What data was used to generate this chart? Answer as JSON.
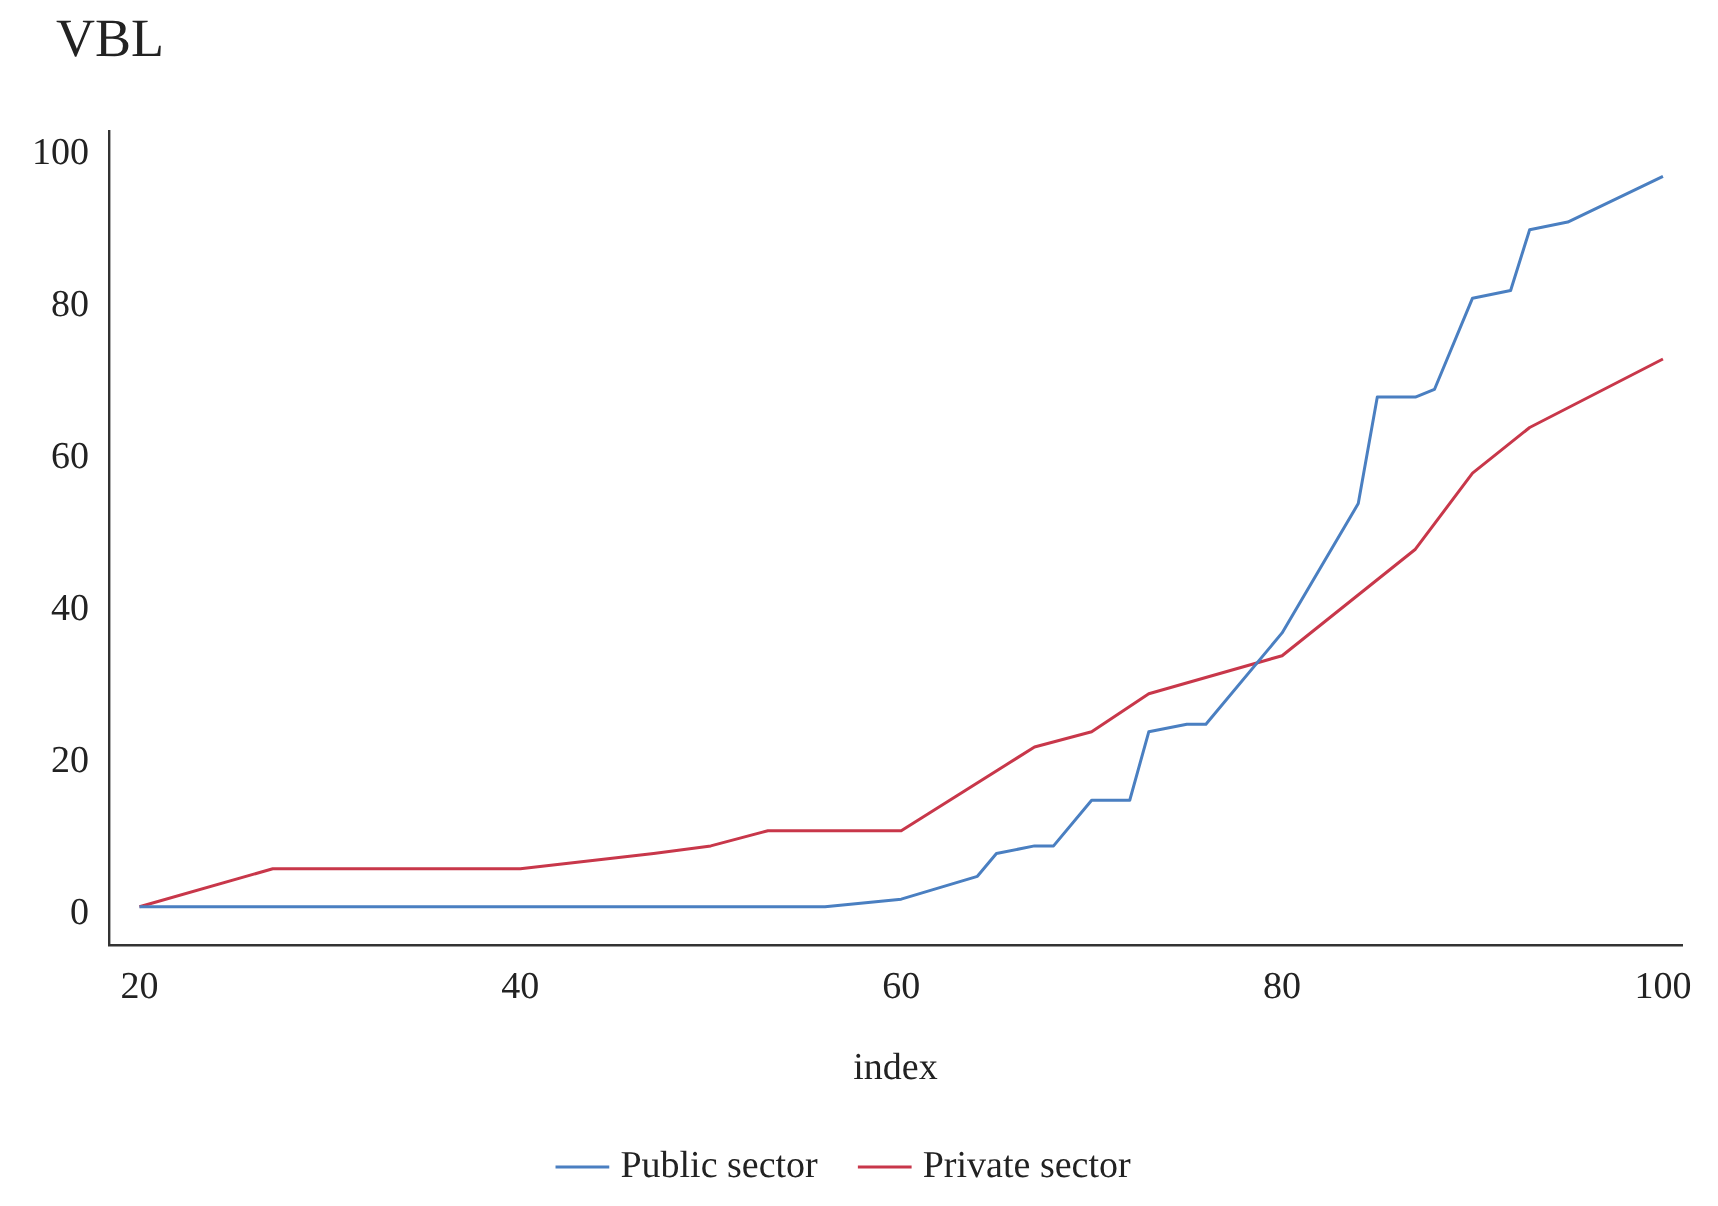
{
  "chart_data": {
    "type": "line",
    "title": "VBL",
    "xlabel": "index",
    "xlim": [
      18.4,
      101
    ],
    "xticks": [
      20,
      40,
      60,
      80,
      100
    ],
    "ylim": [
      -4,
      103
    ],
    "yticks": [
      0,
      20,
      40,
      60,
      80,
      100
    ],
    "grid": false,
    "legend": "bottom",
    "marker": "none",
    "line_style": "solid",
    "series": [
      {
        "name": "Public sector",
        "color": "#4a7fc1",
        "x": [
          20,
          56,
          60,
          64,
          65,
          67,
          68,
          70,
          72,
          73,
          75,
          76,
          80,
          84,
          85,
          87,
          88,
          90,
          92,
          93,
          95,
          100
        ],
        "values": [
          1,
          1,
          2,
          5,
          8,
          9,
          9,
          15,
          15,
          24,
          25,
          25,
          37,
          54,
          68,
          68,
          69,
          81,
          82,
          90,
          91,
          97
        ]
      },
      {
        "name": "Private sector",
        "color": "#c8374a",
        "x": [
          20,
          27,
          40,
          47,
          50,
          53,
          60,
          67,
          70,
          73,
          80,
          87,
          90,
          93,
          100
        ],
        "values": [
          1,
          6,
          6,
          8,
          9,
          11,
          11,
          22,
          24,
          29,
          34,
          48,
          58,
          64,
          73
        ]
      }
    ]
  }
}
